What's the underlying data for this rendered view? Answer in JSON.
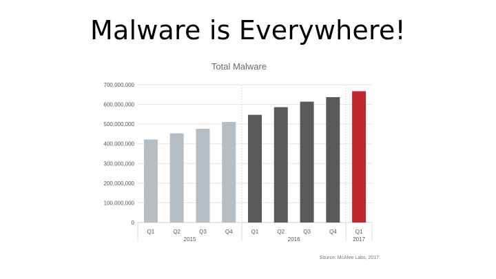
{
  "slide": {
    "title": "Malware is Everywhere!"
  },
  "chart_data": {
    "type": "bar",
    "title": "Total Malware",
    "categories": [
      "Q1",
      "Q2",
      "Q3",
      "Q4",
      "Q1",
      "Q2",
      "Q3",
      "Q4",
      "Q1"
    ],
    "year_labels": [
      "2015",
      "2016",
      "2017"
    ],
    "values": [
      422000000,
      453000000,
      476000000,
      511000000,
      547000000,
      586000000,
      614000000,
      637000000,
      667000000
    ],
    "bar_colors": [
      "#b7bec3",
      "#b7bec3",
      "#b7bec3",
      "#b7bec3",
      "#5a5a5a",
      "#5a5a5a",
      "#5a5a5a",
      "#5a5a5a",
      "#c1272d"
    ],
    "y_ticks": [
      "0",
      "100,000,000",
      "200,000,000",
      "300,000,000",
      "400,000,000",
      "500,000,000",
      "600,000,000",
      "700,000,000"
    ],
    "ylim": [
      0,
      700000000
    ],
    "grid": true,
    "source": "Source: McAfee Labs, 2017."
  }
}
